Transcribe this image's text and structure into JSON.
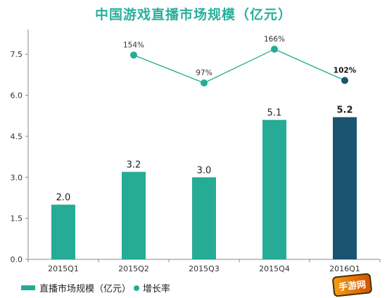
{
  "chart_data": {
    "type": "bar",
    "title": "中国游戏直播市场规模（亿元）",
    "categories": [
      "2015Q1",
      "2015Q2",
      "2015Q3",
      "2015Q4",
      "2016Q1"
    ],
    "series": [
      {
        "name": "直播市场规模（亿元）",
        "type": "bar",
        "values": [
          2.0,
          3.2,
          3.0,
          5.1,
          5.2
        ],
        "labels": [
          "2.0",
          "3.2",
          "3.0",
          "5.1",
          "5.2"
        ],
        "color": "#25ab96",
        "highlight_index": 4,
        "highlight_color": "#1a5470"
      },
      {
        "name": "增长率",
        "type": "line",
        "values": [
          null,
          154,
          97,
          166,
          102
        ],
        "labels": [
          null,
          "154%",
          "97%",
          "166%",
          "102%"
        ],
        "color": "#25ab96",
        "highlight_index": 4,
        "highlight_color": "#1a5470"
      }
    ],
    "yticks": [
      "0.0",
      "1.5",
      "3.0",
      "4.5",
      "6.0",
      "7.5"
    ],
    "ylim": [
      0,
      8.2
    ],
    "legend": "bottom-left"
  },
  "watermark": {
    "text": "手游网"
  }
}
